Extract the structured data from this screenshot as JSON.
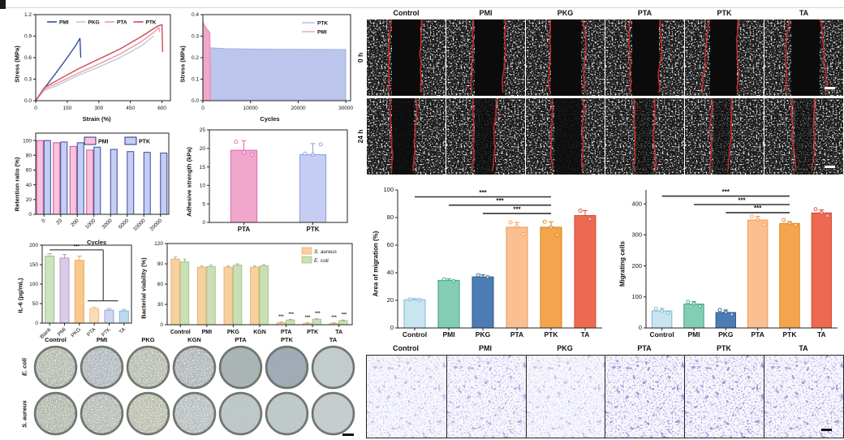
{
  "wound_panel": {
    "columns": [
      "Control",
      "PMI",
      "PKG",
      "PTA",
      "PTK",
      "TA"
    ],
    "rows": [
      "0 h",
      "24 h"
    ],
    "gaps_0h": [
      [
        0.3,
        0.7
      ],
      [
        0.34,
        0.74
      ],
      [
        0.3,
        0.72
      ],
      [
        0.32,
        0.7
      ],
      [
        0.3,
        0.68
      ],
      [
        0.32,
        0.72
      ]
    ],
    "gaps_24h": [
      [
        0.3,
        0.62
      ],
      [
        0.34,
        0.64
      ],
      [
        0.34,
        0.72
      ],
      [
        0.36,
        0.62
      ],
      [
        0.34,
        0.6
      ],
      [
        0.36,
        0.64
      ]
    ],
    "infill_24h": [
      0.15,
      0.35,
      0.2,
      0.75,
      0.8,
      0.85
    ]
  },
  "dish_panel": {
    "columns": [
      "Control",
      "PMI",
      "PKG",
      "KGN",
      "PTA",
      "PTK",
      "TA"
    ],
    "rows": [
      "E. coli",
      "S. aureus"
    ],
    "textured_columns": 4
  },
  "transwell_panel": {
    "columns": [
      "Control",
      "PMI",
      "PKG",
      "PTA",
      "PTK",
      "TA"
    ],
    "densities": [
      0.55,
      0.75,
      0.5,
      1.0,
      1.0,
      0.9
    ]
  },
  "chart_data": [
    {
      "id": "stress-strain",
      "type": "line",
      "xlabel": "Strain (%)",
      "ylabel": "Stress (MPa)",
      "xlim": [
        0,
        640
      ],
      "ylim": [
        0,
        1.2
      ],
      "xticks": [
        "0",
        "150",
        "300",
        "450",
        "600"
      ],
      "yticks": [
        "0.0",
        "0.3",
        "0.6",
        "0.9",
        "1.2"
      ],
      "series": [
        {
          "name": "PMI",
          "color": "#2f4da0",
          "points": [
            [
              0,
              0
            ],
            [
              40,
              0.17
            ],
            [
              90,
              0.36
            ],
            [
              140,
              0.56
            ],
            [
              190,
              0.77
            ],
            [
              210,
              0.87
            ],
            [
              214,
              0.6
            ]
          ]
        },
        {
          "name": "PKG",
          "color": "#bcc6de",
          "points": [
            [
              0,
              0
            ],
            [
              40,
              0.14
            ],
            [
              100,
              0.21
            ],
            [
              200,
              0.35
            ],
            [
              300,
              0.47
            ],
            [
              400,
              0.6
            ],
            [
              500,
              0.76
            ],
            [
              560,
              0.9
            ]
          ]
        },
        {
          "name": "PTA",
          "color": "#e89aa0",
          "points": [
            [
              0,
              0
            ],
            [
              40,
              0.16
            ],
            [
              100,
              0.24
            ],
            [
              200,
              0.38
            ],
            [
              300,
              0.51
            ],
            [
              400,
              0.65
            ],
            [
              500,
              0.82
            ],
            [
              560,
              0.95
            ],
            [
              585,
              1.02
            ],
            [
              589,
              0.96
            ]
          ]
        },
        {
          "name": "PTK",
          "color": "#cf4659",
          "points": [
            [
              0,
              0
            ],
            [
              40,
              0.18
            ],
            [
              100,
              0.28
            ],
            [
              200,
              0.44
            ],
            [
              300,
              0.58
            ],
            [
              400,
              0.72
            ],
            [
              500,
              0.89
            ],
            [
              580,
              1.04
            ],
            [
              600,
              1.06
            ],
            [
              603,
              0.68
            ]
          ]
        }
      ]
    },
    {
      "id": "cyclic-stress",
      "type": "area",
      "xlabel": "Cycles",
      "ylabel": "Stress (MPa)",
      "xlim": [
        0,
        31000
      ],
      "ylim": [
        0,
        0.4
      ],
      "xticks": [
        "0",
        "10000",
        "20000",
        "30000"
      ],
      "yticks": [
        "0.0",
        "0.1",
        "0.2",
        "0.3",
        "0.4"
      ],
      "series": [
        {
          "name": "PTK",
          "color": "#bcc5ec",
          "edge": "#9aa8e0",
          "points": [
            [
              150,
              0.31
            ],
            [
              300,
              0.26
            ],
            [
              600,
              0.25
            ],
            [
              1500,
              0.246
            ],
            [
              5000,
              0.242
            ],
            [
              15000,
              0.239
            ],
            [
              30000,
              0.238
            ]
          ]
        },
        {
          "name": "PMI",
          "color": "#f0a8ca",
          "edge": "#e87ca8",
          "points": [
            [
              30,
              0.37
            ],
            [
              150,
              0.36
            ],
            [
              400,
              0.35
            ],
            [
              800,
              0.335
            ],
            [
              1200,
              0.325
            ],
            [
              1500,
              0.315
            ],
            [
              1560,
              0.05
            ],
            [
              1600,
              0
            ]
          ]
        }
      ]
    },
    {
      "id": "retention-ratio",
      "type": "groupbar",
      "xlabel": "Cycles",
      "ylabel": "Retention ratio (%)",
      "categories": [
        "0",
        "20",
        "200",
        "1000",
        "3000",
        "6000",
        "10000",
        "20000"
      ],
      "yticks": [
        "0",
        "20",
        "40",
        "60",
        "80",
        "100"
      ],
      "ylim": [
        0,
        110
      ],
      "tick_rotate": true,
      "series": [
        {
          "name": "PMI",
          "color": "#f9c3da",
          "edge": "#c2558f",
          "values": [
            100,
            97,
            92,
            87,
            null,
            null,
            null,
            null
          ]
        },
        {
          "name": "PTK",
          "color": "#c6cdf2",
          "edge": "#3a4a9f",
          "values": [
            100,
            98,
            97,
            91,
            88,
            85,
            84,
            83
          ]
        }
      ]
    },
    {
      "id": "adhesive-strength",
      "type": "bar",
      "ylabel": "Adhesive strength (kPa)",
      "categories": [
        "PTA",
        "PTK"
      ],
      "values": [
        19.5,
        18.3
      ],
      "errors": [
        2.6,
        3.0
      ],
      "dots": [
        [
          21.8,
          19.0,
          18.3
        ],
        [
          18.6,
          18.3,
          21.1
        ]
      ],
      "colors": [
        "#efa6ca",
        "#c6cdf2"
      ],
      "edges": [
        "#e06aae",
        "#8d9ce0"
      ],
      "yticks": [
        "0",
        "5",
        "10",
        "15",
        "20",
        "25"
      ],
      "ylim": [
        0,
        25
      ],
      "cat_bold": true
    },
    {
      "id": "il6",
      "type": "bar",
      "ylabel": "IL-6 (pg/mL)",
      "categories": [
        "Blank",
        "PMI",
        "PKG",
        "PTA",
        "PTK",
        "TA"
      ],
      "values": [
        172,
        167,
        161,
        37,
        33,
        31
      ],
      "errors": [
        6,
        9,
        11,
        4,
        4,
        4
      ],
      "colors": [
        "#cde3c0",
        "#dccbe8",
        "#f8c98e",
        "#fbdcb4",
        "#ced5f0",
        "#bcd9f0"
      ],
      "edges": [
        "#9cc28a",
        "#b49cc8",
        "#e8a858",
        "#edc088",
        "#9aa6d8",
        "#86b4dc"
      ],
      "yticks": [
        "0",
        "50",
        "100",
        "150",
        "200"
      ],
      "ylim": [
        0,
        200
      ],
      "tick_rotate": true,
      "sig": [
        {
          "label": "***",
          "label_at": [
            1.8,
            193
          ],
          "lines": [
            [
              [
                0,
                188
              ],
              [
                3.6,
                188
              ]
            ],
            [
              [
                3.6,
                188
              ],
              [
                3.6,
                57
              ]
            ],
            [
              [
                2.55,
                57
              ],
              [
                4.6,
                57
              ]
            ]
          ]
        }
      ]
    },
    {
      "id": "bacterial-viability",
      "type": "groupbar",
      "ylabel": "Bacterial viability (%)",
      "categories": [
        "Control",
        "PMI",
        "PKG",
        "KGN",
        "PTA",
        "PTK",
        "TA"
      ],
      "yticks": [
        "0",
        "30",
        "60",
        "90",
        "120"
      ],
      "ylim": [
        0,
        120
      ],
      "cat_bold": true,
      "series": [
        {
          "name": "S. aureus",
          "italic": true,
          "color": "#f7d0a0",
          "edge": "#edb06a",
          "values": [
            97,
            85,
            85,
            85,
            3,
            2,
            2
          ],
          "errors": [
            3,
            2,
            2,
            2,
            1,
            1,
            1
          ]
        },
        {
          "name": "E. coli",
          "italic": true,
          "color": "#cadfb6",
          "edge": "#a3c77f",
          "values": [
            93,
            86,
            88,
            87,
            7,
            8,
            6
          ],
          "errors": [
            4,
            2,
            2,
            2,
            1,
            1,
            1
          ]
        }
      ],
      "sig": [
        {
          "label": "***",
          "label_at": [
            3.81,
            10
          ]
        },
        {
          "label": "***",
          "label_at": [
            4.19,
            14
          ]
        },
        {
          "label": "***",
          "label_at": [
            4.81,
            9
          ]
        },
        {
          "label": "***",
          "label_at": [
            5.19,
            15
          ]
        },
        {
          "label": "***",
          "label_at": [
            5.81,
            9
          ]
        },
        {
          "label": "***",
          "label_at": [
            6.19,
            13
          ]
        }
      ]
    },
    {
      "id": "area-of-migration",
      "type": "bar",
      "ylabel": "Area of migration (%)",
      "categories": [
        "Control",
        "PMI",
        "PKG",
        "PTA",
        "PTK",
        "TA"
      ],
      "values": [
        20.5,
        34.5,
        37,
        73,
        73,
        81.5
      ],
      "errors": [
        0.8,
        1.2,
        1.5,
        3.5,
        4,
        3.5
      ],
      "dots": [
        [
          20.8,
          20.3
        ],
        [
          35.2,
          34.0
        ],
        [
          38.2,
          36.8
        ],
        [
          76.5,
          73.5,
          68
        ],
        [
          77,
          73,
          67.5
        ],
        [
          85,
          79
        ]
      ],
      "colors": [
        "#c9e6f0",
        "#83cdb4",
        "#4d7cb4",
        "#fbc091",
        "#f4a44c",
        "#ec6a52"
      ],
      "edges": [
        "#7db8d4",
        "#3fa287",
        "#2d5a94",
        "#ef9852",
        "#d98414",
        "#d44c36"
      ],
      "yticks": [
        "0",
        "20",
        "40",
        "60",
        "80",
        "100"
      ],
      "ylim": [
        0,
        100
      ],
      "cat_bold": true,
      "sig": [
        {
          "label": "***",
          "label_at": [
            2,
            96.5
          ],
          "lines": [
            [
              [
                0,
                95
              ],
              [
                4,
                95
              ]
            ]
          ]
        },
        {
          "label": "***",
          "label_at": [
            2.5,
            90.5
          ],
          "lines": [
            [
              [
                1,
                89
              ],
              [
                4,
                89
              ]
            ]
          ]
        },
        {
          "label": "***",
          "label_at": [
            3,
            84.5
          ],
          "lines": [
            [
              [
                2,
                83
              ],
              [
                4,
                83
              ]
            ]
          ]
        }
      ]
    },
    {
      "id": "migrating-cells",
      "type": "bar",
      "ylabel": "Migrating cells",
      "categories": [
        "Control",
        "PMI",
        "PKG",
        "PTA",
        "PTK",
        "TA"
      ],
      "values": [
        55,
        77,
        50,
        348,
        337,
        371
      ],
      "errors": [
        8,
        8,
        8,
        12,
        6,
        10
      ],
      "dots": [
        [
          62,
          55,
          48
        ],
        [
          84,
          78,
          70
        ],
        [
          58,
          50,
          44
        ],
        [
          360,
          350,
          333
        ],
        [
          348,
          338,
          332
        ],
        [
          383,
          372,
          362
        ]
      ],
      "colors": [
        "#c9e6f0",
        "#83cdb4",
        "#4d7cb4",
        "#fbc091",
        "#f4a44c",
        "#ec6a52"
      ],
      "edges": [
        "#7db8d4",
        "#3fa287",
        "#2d5a94",
        "#ef9852",
        "#d98414",
        "#d44c36"
      ],
      "yticks": [
        "0",
        "100",
        "200",
        "300",
        "400"
      ],
      "ylim": [
        0,
        445
      ],
      "cat_bold": true,
      "sig": [
        {
          "label": "***",
          "label_at": [
            2,
            432
          ],
          "lines": [
            [
              [
                0,
                425
              ],
              [
                4,
                425
              ]
            ]
          ]
        },
        {
          "label": "***",
          "label_at": [
            2.5,
            405
          ],
          "lines": [
            [
              [
                1,
                398
              ],
              [
                4,
                398
              ]
            ]
          ]
        },
        {
          "label": "***",
          "label_at": [
            3,
            379
          ],
          "lines": [
            [
              [
                2,
                372
              ],
              [
                4,
                372
              ]
            ]
          ]
        }
      ]
    }
  ]
}
